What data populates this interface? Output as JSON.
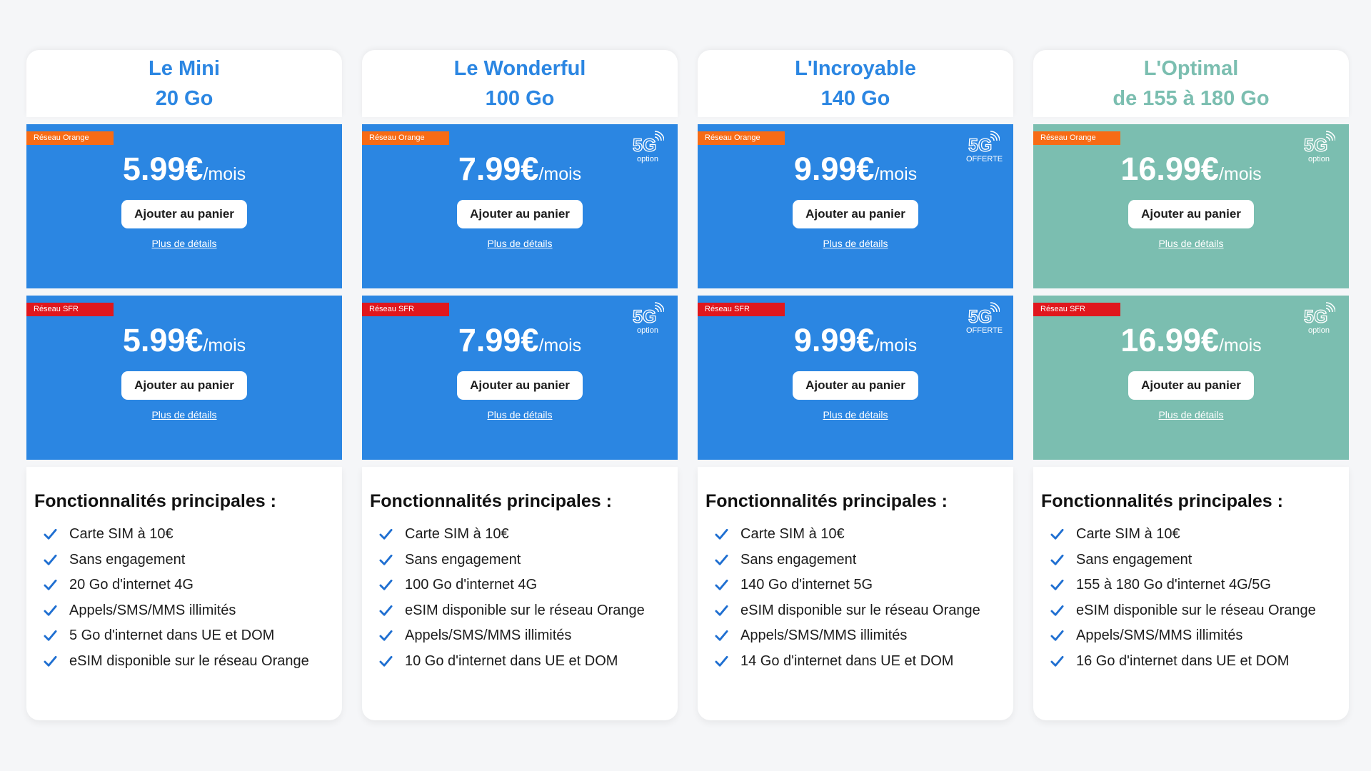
{
  "colors": {
    "accent_blue": "#2b86e2",
    "accent_green": "#7bbeb0",
    "badge_orange": "#f76b15",
    "badge_sfr": "#e0171d",
    "check_blue": "#1f6fd1"
  },
  "plans": [
    {
      "name": "Le Mini",
      "data": "20 Go",
      "theme": "blue",
      "offers": [
        {
          "network": "Réseau Orange",
          "badge": "orange",
          "price": "5.99€",
          "unit": "/mois",
          "fiveg": "",
          "button": "Ajouter au panier",
          "link": "Plus de détails"
        },
        {
          "network": "Réseau SFR",
          "badge": "sfr",
          "price": "5.99€",
          "unit": "/mois",
          "fiveg": "",
          "button": "Ajouter au panier",
          "link": "Plus de détails"
        }
      ],
      "features_title": "Fonctionnalités principales :",
      "features": [
        "Carte SIM à 10€",
        "Sans engagement",
        "20 Go d'internet 4G",
        "Appels/SMS/MMS illimités",
        "5 Go d'internet dans UE et DOM",
        "eSIM disponible sur le réseau Orange"
      ]
    },
    {
      "name": "Le Wonderful",
      "data": "100 Go",
      "theme": "blue",
      "offers": [
        {
          "network": "Réseau Orange",
          "badge": "orange",
          "price": "7.99€",
          "unit": "/mois",
          "fiveg": "option",
          "button": "Ajouter au panier",
          "link": "Plus de détails"
        },
        {
          "network": "Réseau SFR",
          "badge": "sfr",
          "price": "7.99€",
          "unit": "/mois",
          "fiveg": "option",
          "button": "Ajouter au panier",
          "link": "Plus de détails"
        }
      ],
      "features_title": "Fonctionnalités principales :",
      "features": [
        "Carte SIM à 10€",
        "Sans engagement",
        "100 Go d'internet 4G",
        "eSIM disponible sur le réseau Orange",
        "Appels/SMS/MMS illimités",
        "10 Go d'internet dans UE et DOM"
      ]
    },
    {
      "name": "L'Incroyable",
      "data": "140 Go",
      "theme": "blue",
      "offers": [
        {
          "network": "Réseau Orange",
          "badge": "orange",
          "price": "9.99€",
          "unit": "/mois",
          "fiveg": "OFFERTE",
          "button": "Ajouter au panier",
          "link": "Plus de détails"
        },
        {
          "network": "Réseau SFR",
          "badge": "sfr",
          "price": "9.99€",
          "unit": "/mois",
          "fiveg": "OFFERTE",
          "button": "Ajouter au panier",
          "link": "Plus de détails"
        }
      ],
      "features_title": "Fonctionnalités principales :",
      "features": [
        "Carte SIM à 10€",
        "Sans engagement",
        "140 Go d'internet 5G",
        "eSIM disponible sur le réseau Orange",
        "Appels/SMS/MMS illimités",
        "14 Go d'internet dans UE et DOM"
      ]
    },
    {
      "name": "L'Optimal",
      "data": "de 155 à 180 Go",
      "theme": "green",
      "offers": [
        {
          "network": "Réseau Orange",
          "badge": "orange",
          "price": "16.99€",
          "unit": "/mois",
          "fiveg": "option",
          "button": "Ajouter au panier",
          "link": "Plus de détails"
        },
        {
          "network": "Réseau SFR",
          "badge": "sfr",
          "price": "16.99€",
          "unit": "/mois",
          "fiveg": "option",
          "button": "Ajouter au panier",
          "link": "Plus de détails"
        }
      ],
      "features_title": "Fonctionnalités principales :",
      "features": [
        "Carte SIM à 10€",
        "Sans engagement",
        "155 à 180 Go d'internet 4G/5G",
        "eSIM disponible sur le réseau Orange",
        "Appels/SMS/MMS illimités",
        "16 Go d'internet dans UE et DOM"
      ]
    }
  ]
}
